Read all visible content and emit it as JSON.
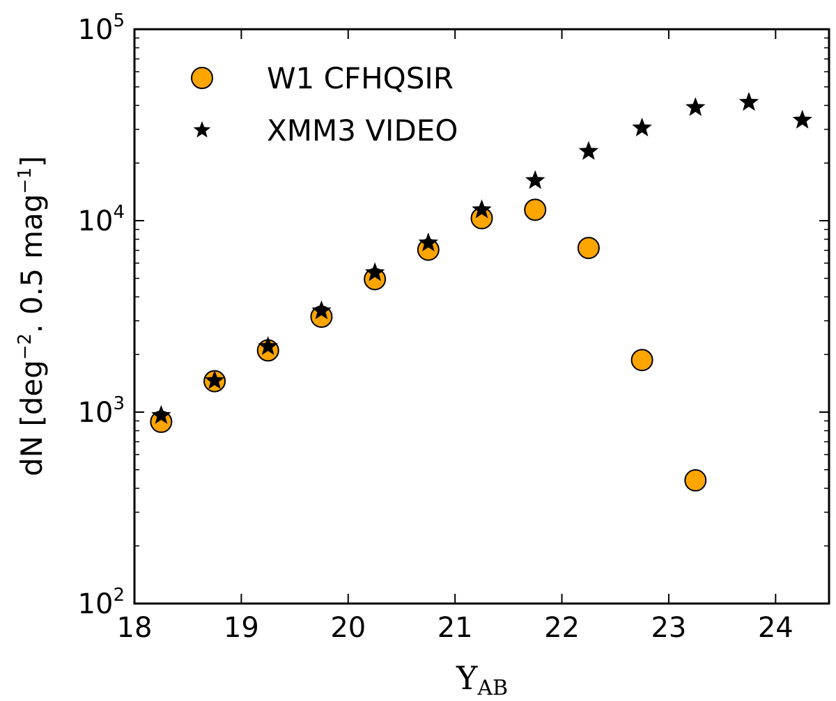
{
  "chart_data": {
    "type": "scatter",
    "xlabel": "Y",
    "xlabel_sub": "AB",
    "ylabel": "dN [deg",
    "ylabel_sup1": "−2",
    "ylabel_mid": ". 0.5 mag",
    "ylabel_sup2": "−1",
    "ylabel_end": "]",
    "xlim": [
      18,
      24.5
    ],
    "ylim": [
      100,
      100000
    ],
    "yscale": "log",
    "legend_position": "top-left",
    "x_ticks": [
      18,
      19,
      20,
      21,
      22,
      23,
      24
    ],
    "y_ticks": [
      {
        "value": 100,
        "base": "10",
        "exp": "2"
      },
      {
        "value": 1000,
        "base": "10",
        "exp": "3"
      },
      {
        "value": 10000,
        "base": "10",
        "exp": "4"
      },
      {
        "value": 100000,
        "base": "10",
        "exp": "5"
      }
    ],
    "series": [
      {
        "name": "W1 CFHQSIR",
        "marker": "circle",
        "color": "#FFA500",
        "x": [
          18.25,
          18.75,
          19.25,
          19.75,
          20.25,
          20.75,
          21.25,
          21.75,
          22.25,
          22.75,
          23.25
        ],
        "y": [
          890,
          1450,
          2100,
          3150,
          4950,
          7050,
          10300,
          11400,
          7200,
          1870,
          440
        ]
      },
      {
        "name": "XMM3 VIDEO",
        "marker": "star",
        "color": "#000000",
        "x": [
          18.25,
          18.75,
          19.25,
          19.75,
          20.25,
          20.75,
          21.25,
          21.75,
          22.25,
          22.75,
          23.25,
          23.75,
          24.25
        ],
        "y": [
          960,
          1460,
          2200,
          3380,
          5350,
          7650,
          11400,
          16200,
          23000,
          30500,
          39000,
          41500,
          33500
        ]
      }
    ]
  }
}
